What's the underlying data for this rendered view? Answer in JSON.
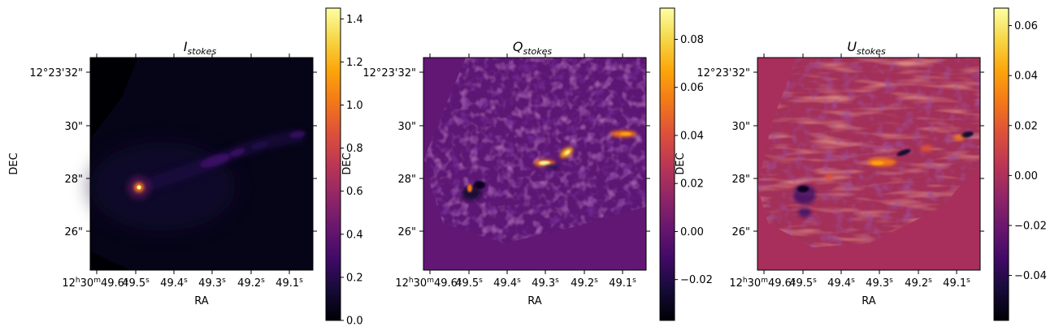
{
  "chart_data": [
    {
      "type": "heatmap",
      "title": {
        "main": "I",
        "sub": "stokes"
      },
      "xlabel": "RA",
      "ylabel": "DEC",
      "x_ticks": [
        {
          "main": "12",
          "sup1": "h",
          "mid": "30",
          "sup2": "m",
          "tail": "49.6",
          "sup3": "s"
        },
        {
          "main": "49.5",
          "sup3": "s"
        },
        {
          "main": "49.4",
          "sup3": "s"
        },
        {
          "main": "49.3",
          "sup3": "s"
        },
        {
          "main": "49.2",
          "sup3": "s"
        },
        {
          "main": "49.1",
          "sup3": "s"
        }
      ],
      "y_ticks": [
        "12°23'32\"",
        "30\"",
        "28\"",
        "26\""
      ],
      "colormap": "inferno",
      "colorbar": {
        "min": 0.0,
        "max": 1.45,
        "ticks": [
          "0.0",
          "0.2",
          "0.4",
          "0.6",
          "0.8",
          "1.0",
          "1.2",
          "1.4"
        ],
        "tick_values": [
          0.0,
          0.2,
          0.4,
          0.6,
          0.8,
          1.0,
          1.2,
          1.4
        ]
      }
    },
    {
      "type": "heatmap",
      "title": {
        "main": "Q",
        "sub": "stokes"
      },
      "xlabel": "RA",
      "ylabel": "DEC",
      "x_ticks": [
        {
          "main": "12",
          "sup1": "h",
          "mid": "30",
          "sup2": "m",
          "tail": "49.6",
          "sup3": "s"
        },
        {
          "main": "49.5",
          "sup3": "s"
        },
        {
          "main": "49.4",
          "sup3": "s"
        },
        {
          "main": "49.3",
          "sup3": "s"
        },
        {
          "main": "49.2",
          "sup3": "s"
        },
        {
          "main": "49.1",
          "sup3": "s"
        }
      ],
      "y_ticks": [
        "12°23'32\"",
        "30\"",
        "28\"",
        "26\""
      ],
      "colormap": "inferno",
      "colorbar": {
        "min": -0.037,
        "max": 0.093,
        "ticks": [
          "−0.02",
          "0.00",
          "0.02",
          "0.04",
          "0.06",
          "0.08"
        ],
        "tick_values": [
          -0.02,
          0.0,
          0.02,
          0.04,
          0.06,
          0.08
        ]
      }
    },
    {
      "type": "heatmap",
      "title": {
        "main": "U",
        "sub": "stokes"
      },
      "xlabel": "RA",
      "ylabel": "DEC",
      "x_ticks": [
        {
          "main": "12",
          "sup1": "h",
          "mid": "30",
          "sup2": "m",
          "tail": "49.6",
          "sup3": "s"
        },
        {
          "main": "49.5",
          "sup3": "s"
        },
        {
          "main": "49.4",
          "sup3": "s"
        },
        {
          "main": "49.3",
          "sup3": "s"
        },
        {
          "main": "49.2",
          "sup3": "s"
        },
        {
          "main": "49.1",
          "sup3": "s"
        }
      ],
      "y_ticks": [
        "12°23'32\"",
        "30\"",
        "28\"",
        "26\""
      ],
      "colormap": "inferno",
      "colorbar": {
        "min": -0.058,
        "max": 0.067,
        "ticks": [
          "−0.04",
          "−0.02",
          "0.00",
          "0.02",
          "0.04",
          "0.06"
        ],
        "tick_values": [
          -0.04,
          -0.02,
          0.0,
          0.02,
          0.04,
          0.06
        ]
      }
    }
  ]
}
